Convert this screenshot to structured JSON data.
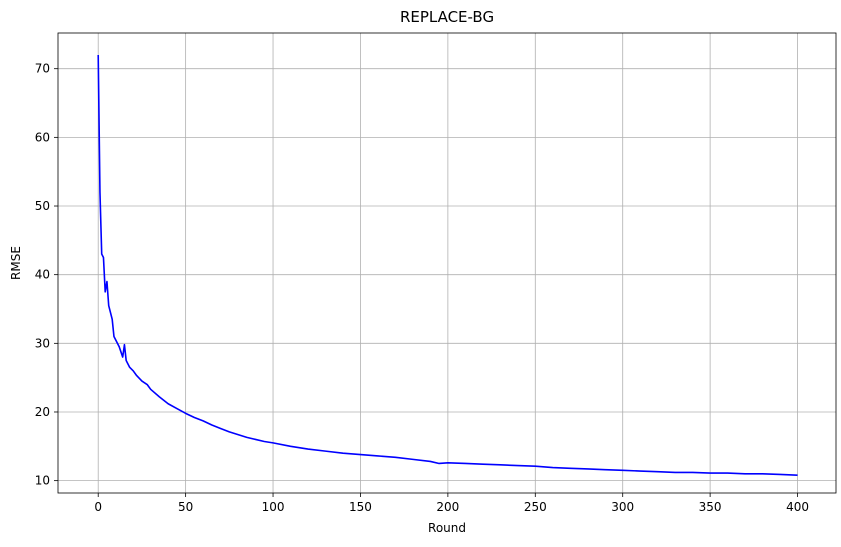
{
  "chart_data": {
    "type": "line",
    "title": "REPLACE-BG",
    "xlabel": "Round",
    "ylabel": "RMSE",
    "xlim": [
      -23,
      422
    ],
    "ylim": [
      8.2,
      75.2
    ],
    "xticks": [
      0,
      50,
      100,
      150,
      200,
      250,
      300,
      350,
      400
    ],
    "yticks": [
      10,
      20,
      30,
      40,
      50,
      60,
      70
    ],
    "grid": true,
    "series": [
      {
        "color": "#0000ff",
        "x": [
          0,
          1,
          2,
          3,
          4,
          5,
          6,
          7,
          8,
          9,
          10,
          12,
          14,
          15,
          16,
          18,
          20,
          22,
          25,
          28,
          30,
          35,
          40,
          45,
          50,
          55,
          60,
          65,
          70,
          75,
          80,
          85,
          90,
          95,
          100,
          110,
          120,
          130,
          140,
          150,
          160,
          170,
          180,
          190,
          195,
          200,
          210,
          220,
          230,
          240,
          250,
          260,
          270,
          280,
          290,
          300,
          310,
          320,
          330,
          340,
          350,
          360,
          370,
          380,
          390,
          400
        ],
        "y": [
          72.0,
          52.0,
          43.0,
          42.5,
          37.5,
          39.0,
          35.5,
          34.5,
          33.5,
          31.0,
          30.5,
          29.5,
          28.0,
          29.8,
          27.5,
          26.5,
          26.0,
          25.3,
          24.5,
          24.0,
          23.3,
          22.2,
          21.2,
          20.5,
          19.8,
          19.2,
          18.7,
          18.1,
          17.6,
          17.1,
          16.7,
          16.3,
          16.0,
          15.7,
          15.5,
          15.0,
          14.6,
          14.3,
          14.0,
          13.8,
          13.6,
          13.4,
          13.1,
          12.8,
          12.5,
          12.6,
          12.5,
          12.4,
          12.3,
          12.2,
          12.1,
          11.9,
          11.8,
          11.7,
          11.6,
          11.5,
          11.4,
          11.3,
          11.2,
          11.2,
          11.1,
          11.1,
          11.0,
          11.0,
          10.9,
          10.8
        ]
      }
    ]
  }
}
